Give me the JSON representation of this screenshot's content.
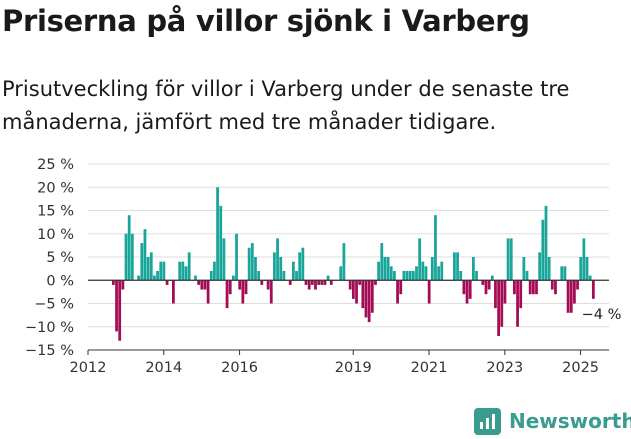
{
  "title": "Priserna på villor sjönk i Varberg",
  "subtitle": "Prisutveckling för villor i Varberg under de senaste tre månaderna, jämfört med tre månader tidigare.",
  "brand": {
    "name": "Newsworthy",
    "icon": "newsworthy-chart-logo-icon",
    "color": "#3a9b8f"
  },
  "colors": {
    "positive": "#1aa59a",
    "negative": "#a40d56",
    "grid": "#dddddd",
    "axis": "#333333"
  },
  "chart_data": {
    "type": "bar",
    "title": "",
    "xlabel": "",
    "ylabel": "",
    "grid": true,
    "ylim": [
      -15,
      25
    ],
    "yticks": [
      25,
      20,
      15,
      10,
      5,
      0,
      -5,
      -10,
      -15
    ],
    "ytick_labels": [
      "25 %",
      "20 %",
      "15 %",
      "10 %",
      "5 %",
      "0 %",
      "−5 %",
      "−10 %",
      "−15 %"
    ],
    "xlim": [
      2012.0,
      2025.75
    ],
    "xticks": [
      2012,
      2014,
      2016,
      2019,
      2021,
      2023,
      2025
    ],
    "xtick_labels": [
      "2012",
      "2014",
      "2016",
      "2019",
      "2021",
      "2023",
      "2025"
    ],
    "x_unit": "year (monthly observations, 12 per year)",
    "series": [
      {
        "start_year": 2012.67,
        "step_years": 0.0833333,
        "values": [
          -1,
          -11,
          -13,
          -2,
          10,
          14,
          10,
          0,
          1,
          8,
          11,
          5,
          6,
          1,
          2,
          4,
          4,
          -1,
          0,
          -5,
          0,
          4,
          4,
          3,
          6,
          0,
          1,
          -1,
          -2,
          -2,
          -5,
          2,
          4,
          20,
          16,
          9,
          -6,
          -3,
          1,
          10,
          -2,
          -5,
          -3,
          7,
          8,
          5,
          2,
          -1,
          0,
          -2,
          -5,
          6,
          9,
          5,
          2,
          0,
          -1,
          4,
          2,
          6,
          7,
          -1,
          -2,
          -1,
          -2,
          -1,
          -1,
          -1,
          1,
          -1,
          0,
          0,
          3,
          8,
          0,
          -2,
          -4,
          -5,
          -1,
          -6,
          -8,
          -9,
          -7,
          -1,
          4,
          8,
          5,
          5,
          3,
          2,
          -5,
          -3,
          2,
          2,
          2,
          2,
          3,
          9,
          4,
          3,
          -5,
          5,
          14,
          3,
          4,
          0,
          0,
          0,
          6,
          6,
          2,
          -3,
          -5,
          -4,
          5,
          2,
          0,
          -1,
          -3,
          -2,
          1,
          -6,
          -12,
          -10,
          -5,
          9,
          9,
          -3,
          -10,
          -6,
          5,
          2,
          -3,
          -3,
          -3,
          6,
          13,
          16,
          5,
          -2,
          -3,
          0,
          3,
          3,
          -7,
          -7,
          -5,
          -2,
          5,
          9,
          5,
          1,
          -4
        ]
      }
    ],
    "annotations": [
      {
        "text": "−4 %",
        "x": 2025.5,
        "y": -4
      }
    ]
  }
}
